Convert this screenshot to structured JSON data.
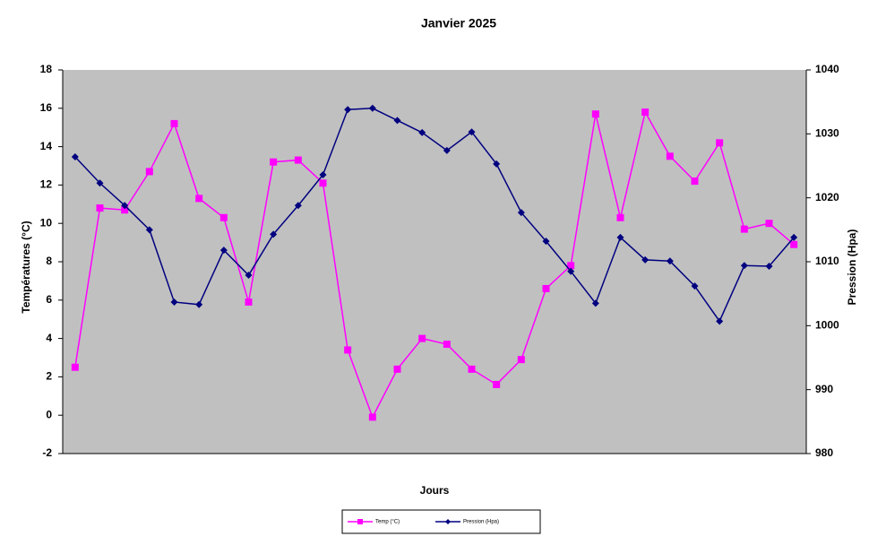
{
  "chart_data": {
    "type": "line",
    "title": "Janvier 2025",
    "x_label": "Jours",
    "y_label": "Températures (°C)",
    "y2_label": "Pression (Hpa)",
    "categories": [
      null,
      null,
      null,
      null,
      null,
      null,
      null,
      null,
      null,
      null,
      null,
      null,
      null,
      null,
      null,
      null,
      null,
      null,
      null,
      null,
      null,
      null,
      null,
      null,
      null,
      null,
      null,
      null,
      null,
      null
    ],
    "series": [
      {
        "name": "Temp (°C)",
        "color": "#ff00ff",
        "marker": "square",
        "values": [
          2.5,
          10.8,
          10.7,
          12.7,
          15.2,
          11.3,
          10.3,
          5.9,
          13.2,
          13.3,
          12.1,
          3.4,
          -0.1,
          2.4,
          4.0,
          3.7,
          2.4,
          1.6,
          2.9,
          6.6,
          7.8,
          15.7,
          10.3,
          15.8,
          13.5,
          12.2,
          14.2,
          9.7,
          10.0,
          8.9
        ]
      },
      {
        "name": "Pression (Hpa)",
        "color": "#000080",
        "marker": "diamond",
        "axis": "y2",
        "values": [
          1026.4,
          1022.3,
          1018.8,
          1015.0,
          1003.7,
          1003.3,
          1011.8,
          1007.9,
          1014.3,
          1018.8,
          1023.6,
          1033.8,
          1034.0,
          1032.1,
          1030.2,
          1027.4,
          1030.3,
          1025.3,
          1017.7,
          1013.2,
          1008.5,
          1003.5,
          1013.8,
          1010.3,
          1010.1,
          1006.2,
          1000.7,
          1009.4,
          1009.3,
          1013.8
        ]
      }
    ],
    "ylim": [
      -2,
      18
    ],
    "yticks": [
      -2,
      0,
      2,
      4,
      6,
      8,
      10,
      12,
      14,
      16,
      18
    ],
    "y2lim": [
      980,
      1040
    ],
    "y2ticks": [
      980,
      990,
      1000,
      1010,
      1020,
      1030,
      1040
    ],
    "plot_background": "#c0c0c0",
    "legend": "bottom"
  }
}
